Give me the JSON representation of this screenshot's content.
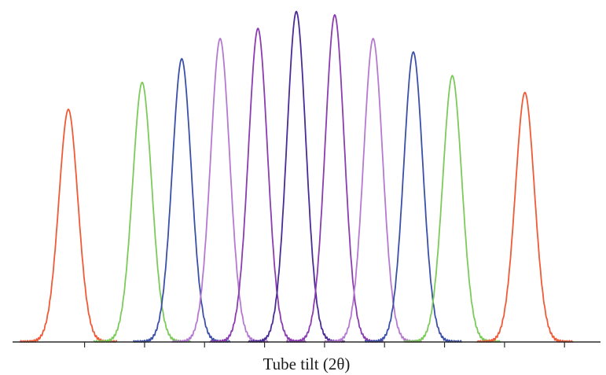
{
  "chart_data": {
    "type": "line",
    "title": "",
    "xlabel": "Tube tilt (2θ)",
    "ylabel": "",
    "grid": false,
    "legend": "none",
    "xlim": [
      -0.2,
      9.6
    ],
    "ylim": [
      0,
      1.0
    ],
    "x_ticks": [
      1,
      2,
      3,
      4,
      5,
      6,
      7,
      8,
      9
    ],
    "peak_halfwidth": 0.16,
    "series": [
      {
        "center": 0.73,
        "height": 0.69,
        "color": "#f05a36"
      },
      {
        "center": 1.96,
        "height": 0.77,
        "color": "#7ccb5a"
      },
      {
        "center": 2.62,
        "height": 0.84,
        "color": "#3a4fa8"
      },
      {
        "center": 3.26,
        "height": 0.9,
        "color": "#b57ad0"
      },
      {
        "center": 3.89,
        "height": 0.93,
        "color": "#8a3cb0"
      },
      {
        "center": 4.53,
        "height": 0.98,
        "color": "#4a2a96"
      },
      {
        "center": 5.17,
        "height": 0.97,
        "color": "#8a3cb0"
      },
      {
        "center": 5.81,
        "height": 0.9,
        "color": "#b57ad0"
      },
      {
        "center": 6.48,
        "height": 0.86,
        "color": "#3a4fa8"
      },
      {
        "center": 7.13,
        "height": 0.79,
        "color": "#7ccb5a"
      },
      {
        "center": 8.34,
        "height": 0.74,
        "color": "#f05a36"
      }
    ]
  }
}
